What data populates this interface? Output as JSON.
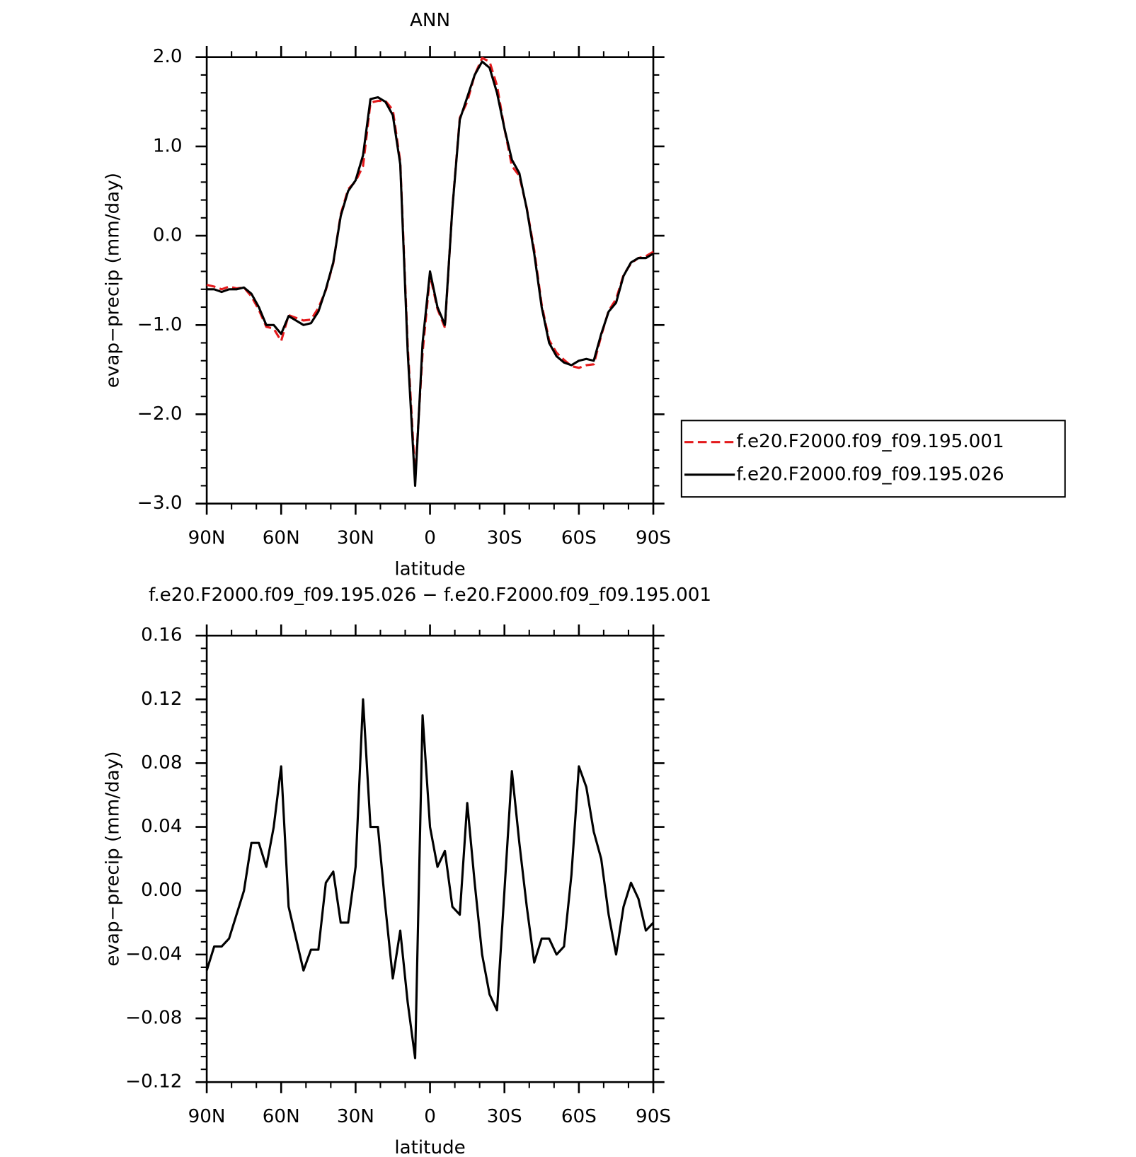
{
  "chart_data": [
    {
      "type": "line",
      "title": "ANN",
      "xlabel": "latitude",
      "ylabel": "evap−precip (mm/day)",
      "x": [
        90,
        87,
        84,
        81,
        78,
        75,
        72,
        69,
        66,
        63,
        60,
        57,
        54,
        51,
        48,
        45,
        42,
        39,
        36,
        33,
        30,
        27,
        24,
        21,
        18,
        15,
        12,
        9,
        6,
        3,
        0,
        -3,
        -6,
        -9,
        -12,
        -15,
        -18,
        -21,
        -24,
        -27,
        -30,
        -33,
        -36,
        -39,
        -42,
        -45,
        -48,
        -51,
        -54,
        -57,
        -60,
        -63,
        -66,
        -69,
        -72,
        -75,
        -78,
        -81,
        -84,
        -87,
        -90
      ],
      "xlim": [
        90,
        -90
      ],
      "xticks": [
        {
          "value": 90,
          "label": "90N"
        },
        {
          "value": 60,
          "label": "60N"
        },
        {
          "value": 30,
          "label": "30N"
        },
        0,
        {
          "value": -30,
          "label": "30S"
        },
        {
          "value": -60,
          "label": "60S"
        },
        {
          "value": -90,
          "label": "90S"
        }
      ],
      "ylim": [
        -3,
        2
      ],
      "yticks": [
        {
          "value": 2,
          "label": "2.0"
        },
        {
          "value": 1,
          "label": "1.0"
        },
        {
          "value": 0,
          "label": "0.0"
        },
        {
          "value": -1,
          "label": "−1.0"
        },
        {
          "value": -2,
          "label": "−2.0"
        },
        {
          "value": -3,
          "label": "−3.0"
        }
      ],
      "legend": "right",
      "series": [
        {
          "name": "f.e20.F2000.f09_f09.195.001",
          "color": "#e31a1c",
          "dashed": true,
          "values": [
            -0.55,
            -0.57,
            -0.6,
            -0.57,
            -0.59,
            -0.58,
            -0.68,
            -0.83,
            -1.02,
            -1.04,
            -1.18,
            -0.89,
            -0.92,
            -0.95,
            -0.94,
            -0.81,
            -0.61,
            -0.31,
            0.24,
            0.52,
            0.61,
            0.78,
            1.49,
            1.51,
            1.51,
            1.41,
            0.83,
            -1.23,
            -2.7,
            -1.31,
            -0.44,
            -0.82,
            -1.03,
            0.31,
            1.32,
            1.5,
            1.8,
            1.99,
            1.95,
            1.68,
            1.2,
            0.78,
            0.67,
            0.31,
            -0.16,
            -0.77,
            -1.17,
            -1.31,
            -1.39,
            -1.46,
            -1.48,
            -1.45,
            -1.44,
            -1.12,
            -0.84,
            -0.71,
            -0.44,
            -0.31,
            -0.25,
            -0.23,
            -0.18
          ]
        },
        {
          "name": "f.e20.F2000.f09_f09.195.026",
          "color": "#000000",
          "dashed": false,
          "values": [
            -0.6,
            -0.6,
            -0.63,
            -0.6,
            -0.6,
            -0.58,
            -0.65,
            -0.8,
            -1.0,
            -1.0,
            -1.1,
            -0.9,
            -0.95,
            -1.0,
            -0.98,
            -0.85,
            -0.6,
            -0.3,
            0.22,
            0.5,
            0.62,
            0.9,
            1.53,
            1.55,
            1.5,
            1.35,
            0.8,
            -1.3,
            -2.8,
            -1.2,
            -0.4,
            -0.8,
            -1.0,
            0.3,
            1.3,
            1.55,
            1.8,
            1.95,
            1.88,
            1.6,
            1.2,
            0.85,
            0.7,
            0.3,
            -0.2,
            -0.8,
            -1.2,
            -1.35,
            -1.42,
            -1.45,
            -1.4,
            -1.38,
            -1.4,
            -1.1,
            -0.85,
            -0.75,
            -0.45,
            -0.3,
            -0.25,
            -0.25,
            -0.2
          ]
        }
      ]
    },
    {
      "type": "line",
      "title": "f.e20.F2000.f09_f09.195.026 − f.e20.F2000.f09_f09.195.001",
      "xlabel": "latitude",
      "ylabel": "evap−precip (mm/day)",
      "x": [
        90,
        87,
        84,
        81,
        78,
        75,
        72,
        69,
        66,
        63,
        60,
        57,
        54,
        51,
        48,
        45,
        42,
        39,
        36,
        33,
        30,
        27,
        24,
        21,
        18,
        15,
        12,
        9,
        6,
        3,
        0,
        -3,
        -6,
        -9,
        -12,
        -15,
        -18,
        -21,
        -24,
        -27,
        -30,
        -33,
        -36,
        -39,
        -42,
        -45,
        -48,
        -51,
        -54,
        -57,
        -60,
        -63,
        -66,
        -69,
        -72,
        -75,
        -78,
        -81,
        -84,
        -87,
        -90
      ],
      "xlim": [
        90,
        -90
      ],
      "xticks": [
        {
          "value": 90,
          "label": "90N"
        },
        {
          "value": 60,
          "label": "60N"
        },
        {
          "value": 30,
          "label": "30N"
        },
        0,
        {
          "value": -30,
          "label": "30S"
        },
        {
          "value": -60,
          "label": "60S"
        },
        {
          "value": -90,
          "label": "90S"
        }
      ],
      "ylim": [
        -0.12,
        0.16
      ],
      "yticks": [
        0.16,
        0.12,
        0.08,
        0.04,
        {
          "value": 0,
          "label": "0.00"
        },
        {
          "value": -0.04,
          "label": "−0.04"
        },
        {
          "value": -0.08,
          "label": "−0.08"
        },
        {
          "value": -0.12,
          "label": "−0.12"
        }
      ],
      "series": [
        {
          "color": "#000000",
          "dashed": false,
          "values": [
            -0.05,
            -0.035,
            -0.035,
            -0.03,
            -0.015,
            0.0,
            0.03,
            0.03,
            0.015,
            0.04,
            0.078,
            -0.01,
            -0.03,
            -0.05,
            -0.037,
            -0.037,
            0.005,
            0.012,
            -0.02,
            -0.02,
            0.015,
            0.12,
            0.04,
            0.04,
            -0.01,
            -0.055,
            -0.025,
            -0.07,
            -0.105,
            0.11,
            0.04,
            0.015,
            0.025,
            -0.01,
            -0.015,
            0.055,
            0.005,
            -0.04,
            -0.065,
            -0.075,
            0.0,
            0.075,
            0.03,
            -0.01,
            -0.045,
            -0.03,
            -0.03,
            -0.04,
            -0.035,
            0.01,
            0.078,
            0.065,
            0.037,
            0.02,
            -0.015,
            -0.04,
            -0.01,
            0.005,
            -0.005,
            -0.025,
            -0.02
          ]
        }
      ]
    }
  ]
}
